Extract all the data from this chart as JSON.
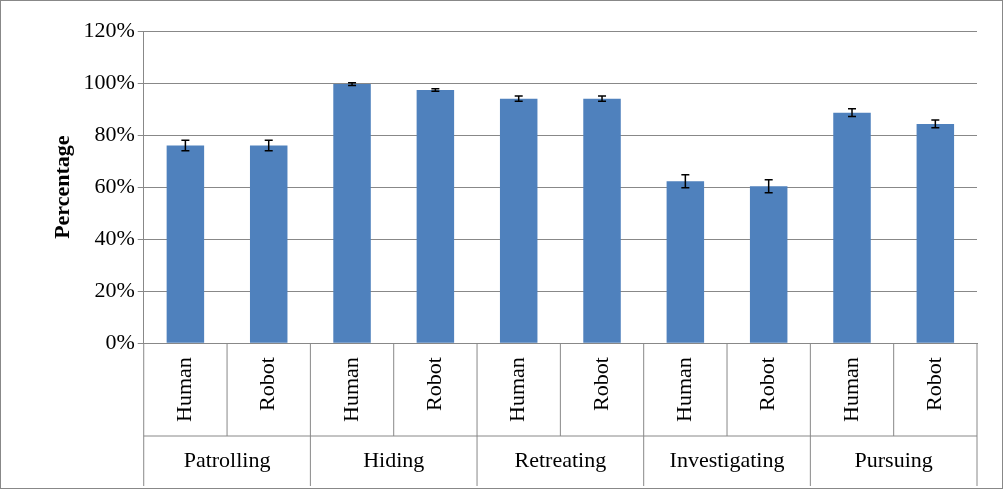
{
  "chart_data": {
    "type": "bar",
    "ylabel": "Percentage",
    "categories": [
      "Human",
      "Robot",
      "Human",
      "Robot",
      "Human",
      "Robot",
      "Human",
      "Robot",
      "Human",
      "Robot"
    ],
    "annotations": [
      "Patrolling",
      "Hiding",
      "Retreating",
      "Investigating",
      "Pursuing"
    ],
    "series": [
      {
        "color": "#4f81bd",
        "values": [
          76,
          76,
          99.6,
          97.3,
          94,
          94,
          62.3,
          60.3,
          88.6,
          84.3
        ],
        "errors": [
          2,
          2,
          0.5,
          0.5,
          1,
          1,
          2.5,
          2.5,
          1.5,
          1.5
        ]
      }
    ],
    "ylim": [
      0,
      120
    ],
    "yticks": [
      {
        "value": 0,
        "label": "0%"
      },
      {
        "value": 20,
        "label": "20%"
      },
      {
        "value": 40,
        "label": "40%"
      },
      {
        "value": 60,
        "label": "60%"
      },
      {
        "value": 80,
        "label": "80%"
      },
      {
        "value": 100,
        "label": "100%"
      },
      {
        "value": 120,
        "label": "120%"
      }
    ],
    "grid": "y",
    "legend": false
  }
}
